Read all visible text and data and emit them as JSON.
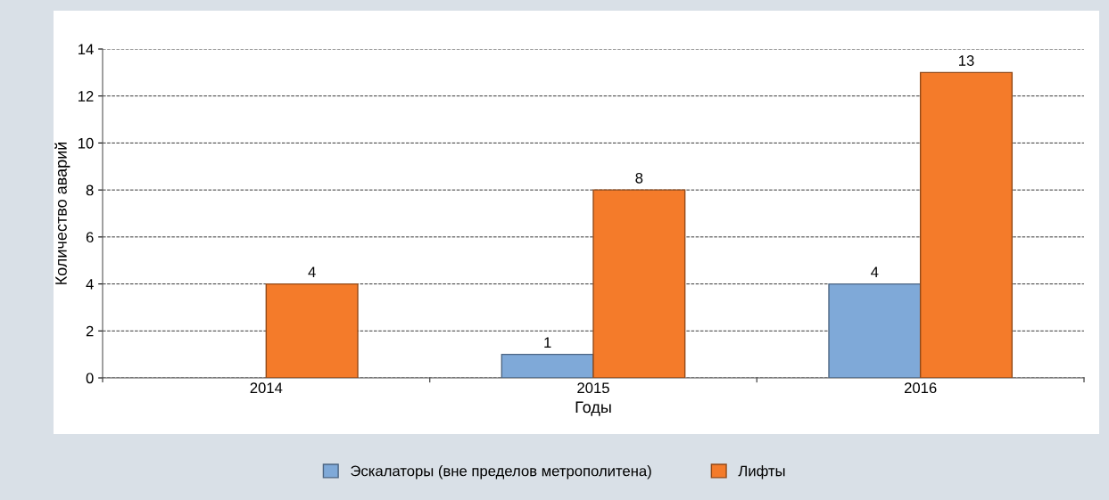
{
  "chart_data": {
    "type": "bar",
    "xlabel": "Годы",
    "ylabel": "Количество аварий",
    "categories": [
      "2014",
      "2015",
      "2016"
    ],
    "series": [
      {
        "name": "Эскалаторы (вне пределов метрополитена)",
        "color": "#7fa9d8",
        "values": [
          null,
          1,
          4
        ],
        "value_labels": [
          null,
          "1",
          "4"
        ]
      },
      {
        "name": "Лифты",
        "color": "#f47b2a",
        "values": [
          4,
          8,
          13
        ],
        "value_labels": [
          "4",
          "8",
          "13"
        ]
      }
    ],
    "ylim": [
      0,
      14
    ],
    "yticks": [
      0,
      2,
      4,
      6,
      8,
      10,
      12,
      14
    ],
    "grid": "y",
    "line_style": "dashed",
    "legend": "bottom"
  }
}
